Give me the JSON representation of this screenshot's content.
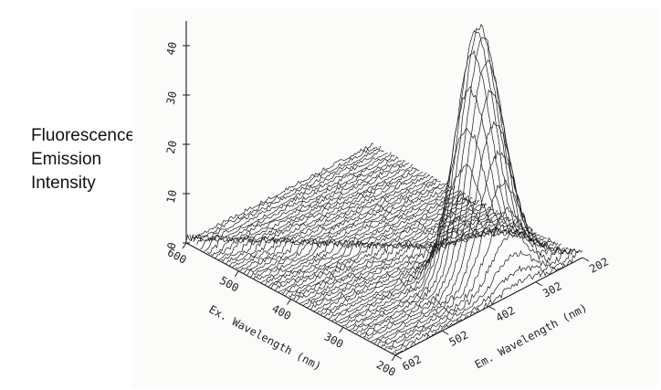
{
  "chart_data": {
    "type": "surface",
    "zlabel_lines": [
      "Fluorescence",
      "Emission",
      "Intensity"
    ],
    "xlabel": "Ex. Wavelength (nm)",
    "ylabel": "Em. Wavelength (nm)",
    "x_ticks": [
      "600",
      "500",
      "400",
      "300",
      "200"
    ],
    "y_ticks": [
      "602",
      "502",
      "402",
      "302",
      "202"
    ],
    "z_ticks": [
      "0",
      "10",
      "20",
      "30",
      "40"
    ],
    "xlim": [
      200,
      600
    ],
    "ylim": [
      202,
      602
    ],
    "zlim": [
      0,
      45
    ],
    "peaks": [
      {
        "ex": 280,
        "em": 340,
        "intensity": 44
      },
      {
        "ex": 245,
        "em": 335,
        "intensity": 18
      }
    ],
    "grid": false,
    "line_color": "#1a1a1a"
  }
}
